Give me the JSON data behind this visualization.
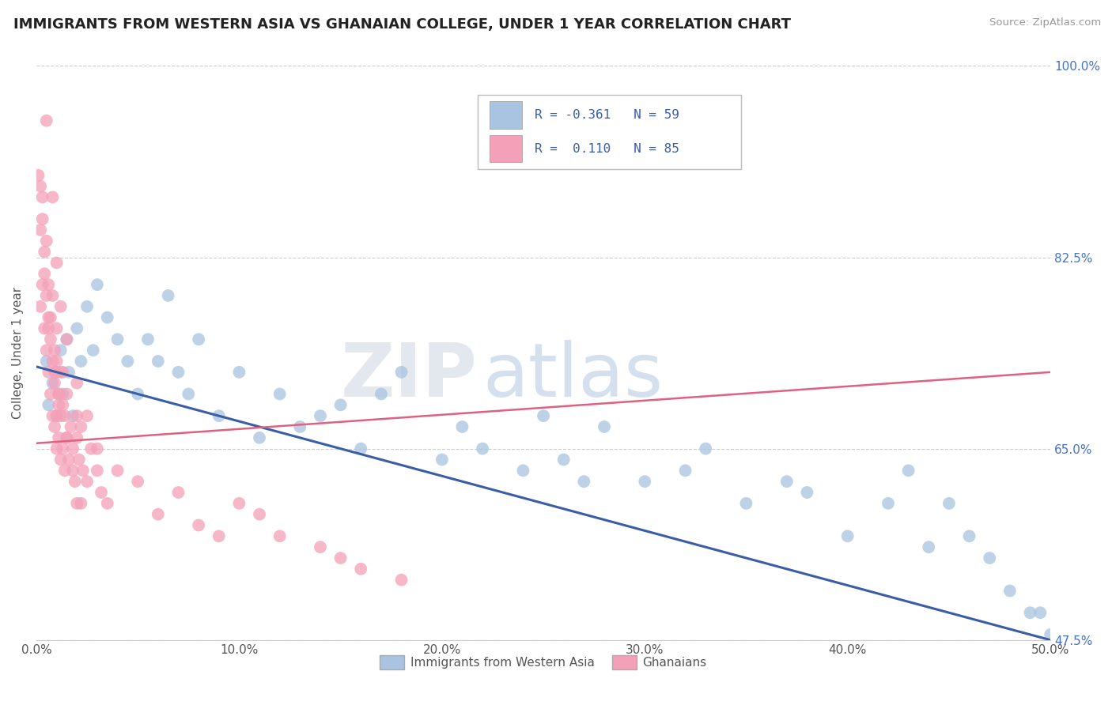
{
  "title": "IMMIGRANTS FROM WESTERN ASIA VS GHANAIAN COLLEGE, UNDER 1 YEAR CORRELATION CHART",
  "source_text": "Source: ZipAtlas.com",
  "ylabel": "College, Under 1 year",
  "xlim": [
    0.0,
    50.0
  ],
  "ylim": [
    47.5,
    100.0
  ],
  "xtick_vals": [
    0,
    10,
    20,
    30,
    40,
    50
  ],
  "xtick_labels": [
    "0.0%",
    "10.0%",
    "20.0%",
    "30.0%",
    "40.0%",
    "50.0%"
  ],
  "ytick_vals": [
    47.5,
    65.0,
    82.5,
    100.0
  ],
  "ytick_labels": [
    "47.5%",
    "65.0%",
    "82.5%",
    "100.0%"
  ],
  "legend_r_blue": "-0.361",
  "legend_n_blue": "59",
  "legend_r_pink": "0.110",
  "legend_n_pink": "85",
  "blue_color": "#a8c4e0",
  "pink_color": "#f4a0b8",
  "blue_line_color": "#3a5da8",
  "pink_line_color": "#e06080",
  "watermark_zip": "ZIP",
  "watermark_atlas": "atlas",
  "blue_trend_x0": 0,
  "blue_trend_y0": 72.5,
  "blue_trend_x1": 50,
  "blue_trend_y1": 47.5,
  "pink_trend_x0": 0,
  "pink_trend_y0": 65.5,
  "pink_trend_x1": 50,
  "pink_trend_y1": 72.0,
  "blue_x": [
    0.5,
    0.6,
    0.8,
    1.0,
    1.2,
    1.3,
    1.5,
    1.6,
    1.8,
    2.0,
    2.2,
    2.5,
    2.8,
    3.0,
    3.5,
    4.0,
    4.5,
    5.0,
    5.5,
    6.0,
    6.5,
    7.0,
    7.5,
    8.0,
    9.0,
    10.0,
    11.0,
    12.0,
    13.0,
    14.0,
    15.0,
    16.0,
    17.0,
    18.0,
    20.0,
    21.0,
    22.0,
    24.0,
    25.0,
    26.0,
    27.0,
    28.0,
    30.0,
    32.0,
    33.0,
    35.0,
    37.0,
    38.0,
    40.0,
    42.0,
    43.0,
    44.0,
    45.0,
    46.0,
    47.0,
    48.0,
    49.0,
    49.5,
    50.0
  ],
  "blue_y": [
    73,
    69,
    71,
    68,
    74,
    70,
    75,
    72,
    68,
    76,
    73,
    78,
    74,
    80,
    77,
    75,
    73,
    70,
    75,
    73,
    79,
    72,
    70,
    75,
    68,
    72,
    66,
    70,
    67,
    68,
    69,
    65,
    70,
    72,
    64,
    67,
    65,
    63,
    68,
    64,
    62,
    67,
    62,
    63,
    65,
    60,
    62,
    61,
    57,
    60,
    63,
    56,
    60,
    57,
    55,
    52,
    50,
    50,
    48
  ],
  "pink_x": [
    0.1,
    0.2,
    0.2,
    0.3,
    0.3,
    0.4,
    0.4,
    0.5,
    0.5,
    0.6,
    0.6,
    0.7,
    0.7,
    0.8,
    0.8,
    0.9,
    0.9,
    1.0,
    1.0,
    1.0,
    1.1,
    1.1,
    1.2,
    1.2,
    1.3,
    1.3,
    1.4,
    1.5,
    1.5,
    1.6,
    1.7,
    1.8,
    1.9,
    2.0,
    2.0,
    2.1,
    2.2,
    2.3,
    2.5,
    2.7,
    3.0,
    3.2,
    3.5,
    4.0,
    5.0,
    6.0,
    7.0,
    8.0,
    9.0,
    10.0,
    11.0,
    12.0,
    14.0,
    15.0,
    16.0,
    18.0,
    0.5,
    0.8,
    1.0,
    1.2,
    1.5,
    2.0,
    2.5,
    3.0,
    0.3,
    0.6,
    0.9,
    1.1,
    1.3,
    0.4,
    0.7,
    1.0,
    1.4,
    0.2,
    0.5,
    0.8,
    1.0,
    1.2,
    2.0,
    0.6,
    0.9,
    1.1,
    1.5,
    1.8,
    2.2
  ],
  "pink_y": [
    90,
    85,
    78,
    80,
    88,
    76,
    83,
    74,
    79,
    72,
    77,
    70,
    75,
    68,
    73,
    67,
    71,
    68,
    72,
    65,
    66,
    70,
    64,
    68,
    65,
    69,
    63,
    66,
    70,
    64,
    67,
    65,
    62,
    66,
    60,
    64,
    67,
    63,
    62,
    65,
    63,
    61,
    60,
    63,
    62,
    59,
    61,
    58,
    57,
    60,
    59,
    57,
    56,
    55,
    54,
    53,
    95,
    88,
    82,
    78,
    75,
    71,
    68,
    65,
    86,
    80,
    74,
    69,
    72,
    81,
    77,
    73,
    68,
    89,
    84,
    79,
    76,
    72,
    68,
    76,
    72,
    70,
    66,
    63,
    60
  ]
}
